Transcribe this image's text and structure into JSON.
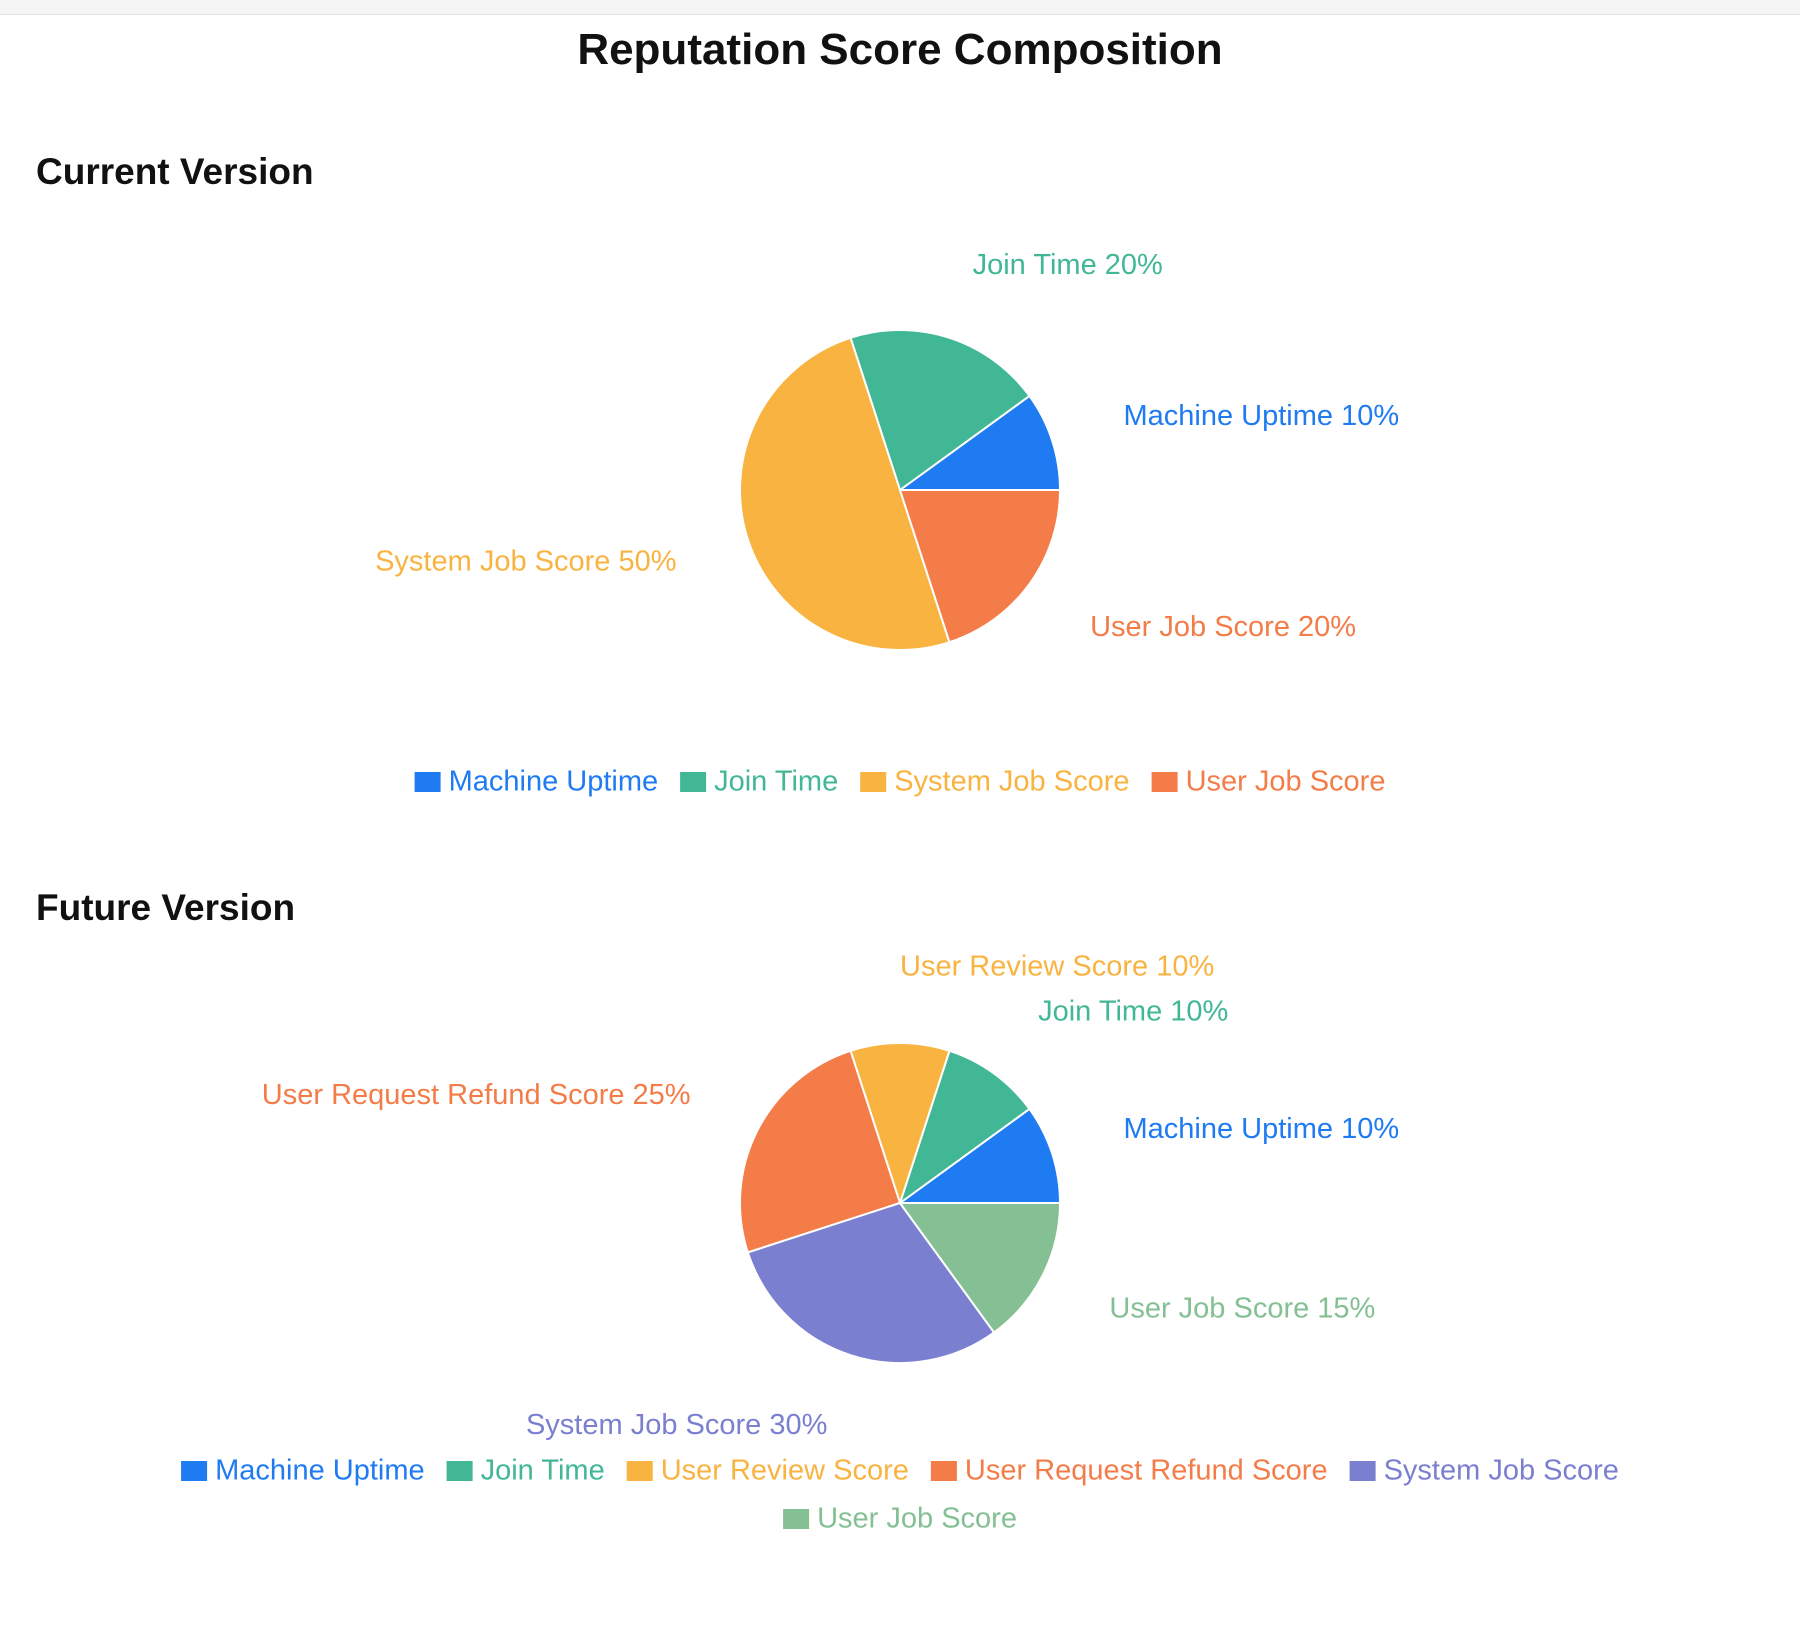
{
  "page": {
    "title": "Reputation Score Composition"
  },
  "chart_data": [
    {
      "type": "pie",
      "section_title": "Current Version",
      "unit": "%",
      "legend_position": "bottom",
      "slices": [
        {
          "label": "Machine Uptime",
          "value": 10,
          "color": "#1f7bf2"
        },
        {
          "label": "Join Time",
          "value": 20,
          "color": "#41b796"
        },
        {
          "label": "System Job Score",
          "value": 50,
          "color": "#f9b340"
        },
        {
          "label": "User Job Score",
          "value": 20,
          "color": "#f47c48"
        }
      ]
    },
    {
      "type": "pie",
      "section_title": "Future Version",
      "unit": "%",
      "legend_position": "bottom",
      "slices": [
        {
          "label": "Machine Uptime",
          "value": 10,
          "color": "#1f7bf2"
        },
        {
          "label": "Join Time",
          "value": 10,
          "color": "#41b796"
        },
        {
          "label": "User Review Score",
          "value": 10,
          "color": "#f9b340"
        },
        {
          "label": "User Request Refund Score",
          "value": 25,
          "color": "#f47c48"
        },
        {
          "label": "System Job Score",
          "value": 30,
          "color": "#7b7fcf"
        },
        {
          "label": "User Job Score",
          "value": 15,
          "color": "#84c093"
        }
      ]
    }
  ]
}
